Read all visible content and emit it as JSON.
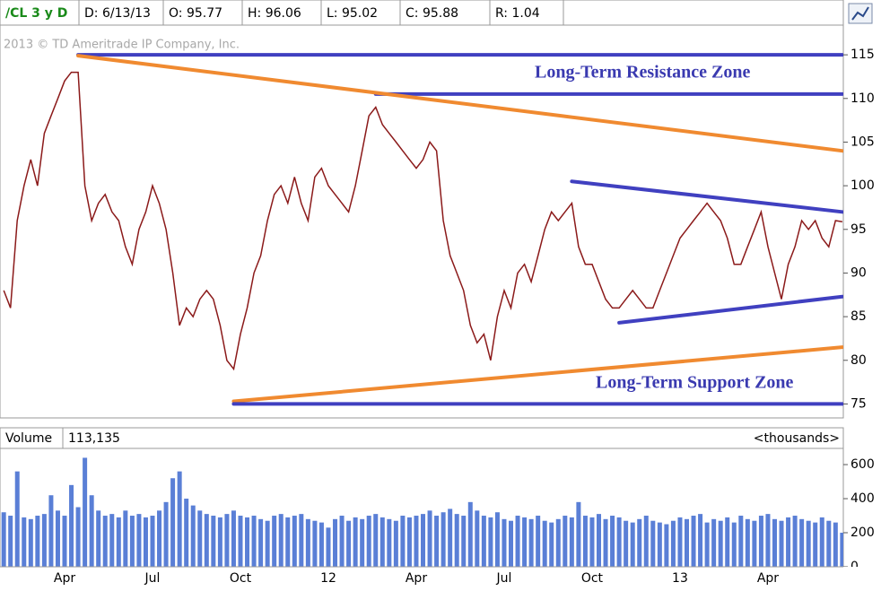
{
  "header": {
    "symbol": "/CL 3 y D",
    "date": "D: 6/13/13",
    "open": "O: 95.77",
    "high": "H: 96.06",
    "low": "L: 95.02",
    "close": "C: 95.88",
    "range": "R: 1.04",
    "watermark": "2013 © TD Ameritrade IP Company, Inc."
  },
  "chart_data": [
    {
      "type": "line",
      "color": "#8b1a1a",
      "categories": [
        null,
        null,
        null,
        null,
        null,
        null,
        null,
        null,
        null,
        "Apr",
        null,
        null,
        null,
        null,
        null,
        null,
        null,
        null,
        null,
        null,
        null,
        null,
        "Jul",
        null,
        null,
        null,
        null,
        null,
        null,
        null,
        null,
        null,
        null,
        null,
        null,
        "Oct",
        null,
        null,
        null,
        null,
        null,
        null,
        null,
        null,
        null,
        null,
        null,
        null,
        "12",
        null,
        null,
        null,
        null,
        null,
        null,
        null,
        null,
        null,
        null,
        null,
        null,
        "Apr",
        null,
        null,
        null,
        null,
        null,
        null,
        null,
        null,
        null,
        null,
        null,
        null,
        "Jul",
        null,
        null,
        null,
        null,
        null,
        null,
        null,
        null,
        null,
        null,
        null,
        null,
        "Oct",
        null,
        null,
        null,
        null,
        null,
        null,
        null,
        null,
        null,
        null,
        null,
        null,
        "13",
        null,
        null,
        null,
        null,
        null,
        null,
        null,
        null,
        null,
        null,
        null,
        null,
        "Apr",
        null,
        null,
        null,
        null,
        null,
        null,
        null,
        null,
        null,
        null,
        null
      ],
      "values": [
        88,
        86,
        96,
        100,
        103,
        100,
        106,
        108,
        110,
        112,
        113,
        113,
        100,
        96,
        98,
        99,
        97,
        96,
        93,
        91,
        95,
        97,
        100,
        98,
        95,
        90,
        84,
        86,
        85,
        87,
        88,
        87,
        84,
        80,
        79,
        83,
        86,
        90,
        92,
        96,
        99,
        100,
        98,
        101,
        98,
        96,
        101,
        102,
        100,
        99,
        98,
        97,
        100,
        104,
        108,
        109,
        107,
        106,
        105,
        104,
        103,
        102,
        103,
        105,
        104,
        96,
        92,
        90,
        88,
        84,
        82,
        83,
        80,
        85,
        88,
        86,
        90,
        91,
        89,
        92,
        95,
        97,
        96,
        97,
        98,
        93,
        91,
        91,
        89,
        87,
        86,
        86,
        87,
        88,
        87,
        86,
        86,
        88,
        90,
        92,
        94,
        95,
        96,
        97,
        98,
        97,
        96,
        94,
        91,
        91,
        93,
        95,
        97,
        93,
        90,
        87,
        91,
        93,
        96,
        95,
        96,
        94,
        93,
        96,
        95.88
      ],
      "ylim": [
        73.4,
        118.3
      ],
      "yticks": [
        75,
        80,
        85,
        90,
        95,
        100,
        105,
        110,
        115
      ],
      "lines": [
        {
          "color": "#4040c0",
          "x": [
            11,
            124
          ],
          "values": [
            115,
            115
          ]
        },
        {
          "color": "#4040c0",
          "x": [
            55,
            124
          ],
          "values": [
            110.5,
            110.5
          ]
        },
        {
          "color": "#f08a30",
          "x": [
            11,
            124
          ],
          "values": [
            114.9,
            104
          ]
        },
        {
          "color": "#f08a30",
          "x": [
            34,
            124
          ],
          "values": [
            75.3,
            81.5
          ]
        },
        {
          "color": "#4040c0",
          "x": [
            34,
            124
          ],
          "values": [
            75,
            75
          ]
        },
        {
          "color": "#4040c0",
          "x": [
            84,
            124
          ],
          "values": [
            100.5,
            97
          ]
        },
        {
          "color": "#4040c0",
          "x": [
            91,
            124
          ],
          "values": [
            84.3,
            87.3
          ]
        }
      ],
      "annotations": [
        "Long-Term Resistance Zone",
        "Long-Term Support Zone"
      ]
    },
    {
      "type": "bar",
      "title": "Volume",
      "subtitle": "113,135",
      "units": "<thousands>",
      "color": "#5a7fd6",
      "values": [
        320,
        300,
        560,
        290,
        280,
        300,
        310,
        420,
        330,
        300,
        480,
        350,
        640,
        420,
        330,
        300,
        310,
        290,
        330,
        300,
        310,
        290,
        300,
        330,
        380,
        520,
        560,
        400,
        360,
        330,
        310,
        300,
        290,
        310,
        330,
        300,
        290,
        300,
        280,
        270,
        300,
        310,
        290,
        300,
        310,
        280,
        270,
        260,
        230,
        280,
        300,
        270,
        290,
        280,
        300,
        310,
        290,
        280,
        270,
        300,
        290,
        300,
        310,
        330,
        300,
        320,
        340,
        310,
        300,
        380,
        330,
        300,
        290,
        320,
        280,
        270,
        300,
        290,
        280,
        300,
        270,
        260,
        280,
        300,
        290,
        380,
        300,
        290,
        310,
        280,
        300,
        290,
        270,
        260,
        280,
        300,
        270,
        260,
        250,
        270,
        290,
        280,
        300,
        310,
        260,
        280,
        270,
        290,
        260,
        300,
        280,
        270,
        300,
        310,
        280,
        270,
        290,
        300,
        280,
        270,
        260,
        290,
        270,
        260,
        200
      ],
      "ylim": [
        0,
        695
      ],
      "yticks": [
        0,
        200,
        400,
        600
      ]
    }
  ]
}
